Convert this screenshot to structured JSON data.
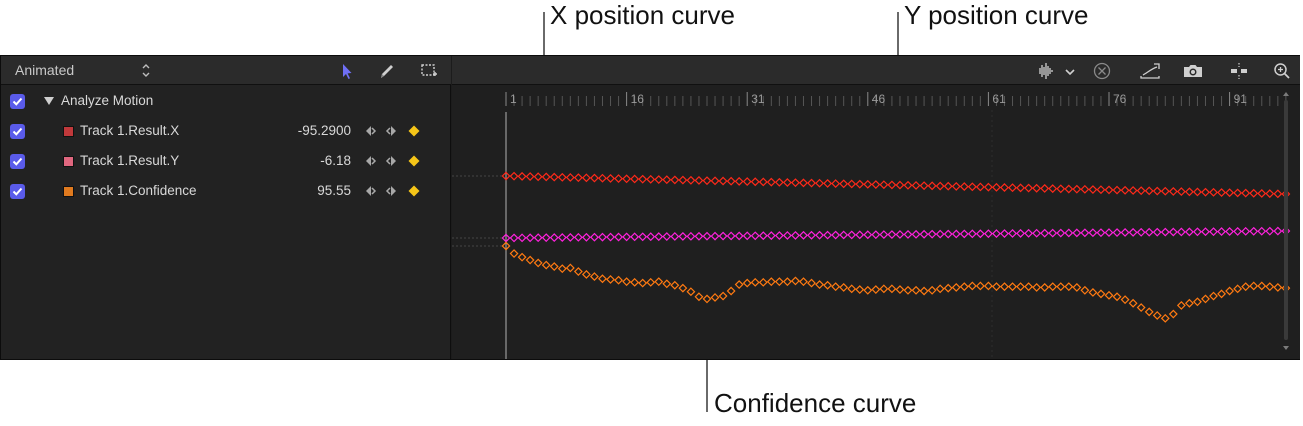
{
  "callouts": {
    "x_curve": "X position curve",
    "y_curve": "Y position curve",
    "confidence_curve": "Confidence curve"
  },
  "left_toolbar": {
    "filter_value": "Animated",
    "tools": [
      "select-arrow-icon",
      "pen-icon",
      "marquee-icon"
    ]
  },
  "rows": [
    {
      "label": "Analyze Motion",
      "checked": true,
      "expanded": true
    },
    {
      "label": "Track 1.Result.X",
      "value": "-95.2900",
      "color": "#c0393b",
      "checked": true
    },
    {
      "label": "Track 1.Result.Y",
      "value": "-6.18",
      "color": "#e0677f",
      "checked": true
    },
    {
      "label": "Track 1.Confidence",
      "value": "95.55",
      "color": "#e07a1f",
      "checked": true
    }
  ],
  "ruler": {
    "labels": [
      "1",
      "16",
      "31",
      "46",
      "61",
      "76",
      "91"
    ]
  },
  "right_toolbar": {
    "tools": [
      "audio-waveform-icon",
      "chevron-down-icon",
      "clear-icon",
      "fit-curves-icon",
      "snapshot-camera-icon",
      "snap-icon",
      "zoom-icon"
    ]
  },
  "colors": {
    "x_curve": "#ff2a1a",
    "y_curve": "#ff22dd",
    "confidence_curve": "#ff7a12",
    "keyframe_add": "#f5c518",
    "checkbox": "#5a5bea",
    "playhead": "#9a9a9a"
  },
  "curves": {
    "x_frames": [
      1,
      98
    ],
    "x_values": [
      -95.29,
      -96.1
    ],
    "y_values": [
      -6.18,
      -6.0
    ],
    "confidence_values": [
      95.55,
      94.5,
      94.0,
      93.6,
      93.2,
      92.9,
      92.7,
      92.4,
      92.5,
      92.0,
      91.6,
      91.3,
      91.0,
      90.9,
      90.8,
      90.6,
      90.5,
      90.4,
      90.5,
      90.6,
      90.3,
      90.1,
      89.7,
      89.2,
      88.5,
      88.2,
      88.4,
      88.6,
      89.3,
      90.2,
      90.4,
      90.5,
      90.5,
      90.6,
      90.6,
      90.6,
      90.7,
      90.6,
      90.4,
      90.2,
      90.1,
      89.9,
      89.8,
      89.6,
      89.5,
      89.4,
      89.5,
      89.6,
      89.6,
      89.5,
      89.4,
      89.4,
      89.3,
      89.4,
      89.6,
      89.7,
      89.8,
      89.9,
      90.0,
      90.0,
      90.0,
      89.9,
      89.9,
      89.9,
      89.9,
      89.9,
      89.8,
      89.8,
      89.9,
      89.9,
      89.9,
      89.8,
      89.4,
      89.1,
      88.9,
      88.7,
      88.5,
      88.1,
      87.6,
      87.0,
      86.4,
      85.9,
      85.5,
      86.1,
      87.3,
      87.6,
      87.8,
      88.2,
      88.6,
      88.9,
      89.3,
      89.6,
      89.9,
      90.0,
      90.0,
      89.9,
      89.8,
      89.7
    ]
  }
}
